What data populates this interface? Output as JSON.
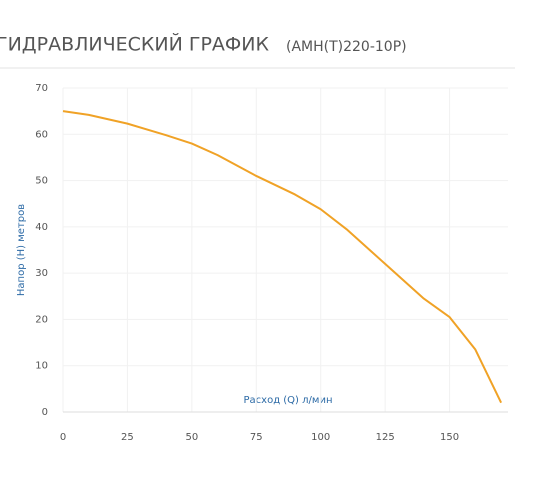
{
  "chart_data": {
    "type": "line",
    "title": "ГИДРАВЛИЧЕСКИЙ ГРАФИК",
    "subtitle": "(АМН(Т)220-10Р)",
    "x_label": "Расход (Q) л/мин",
    "y_label": "Напор (Н) метров",
    "x": [
      0,
      10,
      25,
      40,
      50,
      60,
      75,
      90,
      100,
      110,
      125,
      140,
      150,
      160,
      170
    ],
    "series": [
      {
        "name": "АМН(Т)220-10Р",
        "color": "#f0a226",
        "values": [
          65,
          64.2,
          62.3,
          59.8,
          58,
          55.5,
          51,
          47,
          43.8,
          39.5,
          32,
          24.5,
          20.5,
          13.5,
          2
        ]
      }
    ],
    "xlim": [
      0,
      175
    ],
    "ylim": [
      0,
      70
    ],
    "xticks": [
      0,
      25,
      50,
      75,
      100,
      125,
      150
    ],
    "yticks": [
      0,
      10,
      20,
      30,
      40,
      50,
      60,
      70
    ],
    "grid": true
  }
}
